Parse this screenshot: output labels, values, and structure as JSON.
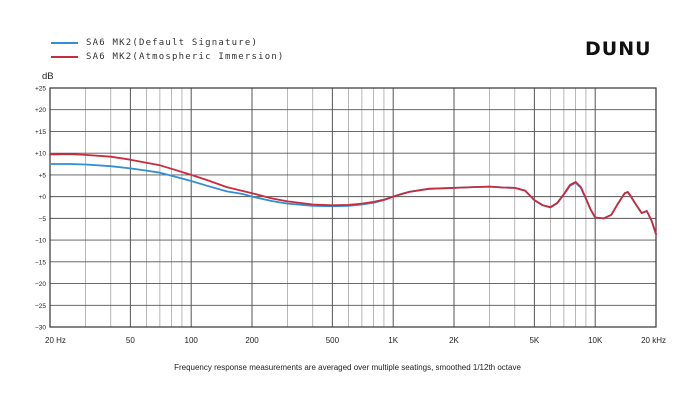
{
  "brand": {
    "logo_text": "DUNU"
  },
  "caption": "Frequency response measurements are averaged over multiple seatings, smoothed 1/12th octave",
  "chart_data": {
    "type": "line",
    "title": "",
    "xlabel": "",
    "ylabel": "dB",
    "x_scale": "log",
    "xlim": [
      20,
      20000
    ],
    "ylim": [
      -30,
      25
    ],
    "grid": true,
    "legend_position": "top-left",
    "x_ticks": [
      {
        "value": 20,
        "label": "20 Hz"
      },
      {
        "value": 50,
        "label": "50"
      },
      {
        "value": 100,
        "label": "100"
      },
      {
        "value": 200,
        "label": "200"
      },
      {
        "value": 500,
        "label": "500"
      },
      {
        "value": 1000,
        "label": "1K"
      },
      {
        "value": 2000,
        "label": "2K"
      },
      {
        "value": 5000,
        "label": "5K"
      },
      {
        "value": 10000,
        "label": "10K"
      },
      {
        "value": 20000,
        "label": "20 kHz"
      }
    ],
    "y_ticks": [
      {
        "value": 25,
        "label": "+25"
      },
      {
        "value": 20,
        "label": "+20"
      },
      {
        "value": 15,
        "label": "+15"
      },
      {
        "value": 10,
        "label": "+10"
      },
      {
        "value": 5,
        "label": "+5"
      },
      {
        "value": 0,
        "label": "+0"
      },
      {
        "value": -5,
        "label": "−5"
      },
      {
        "value": -10,
        "label": "−10"
      },
      {
        "value": -15,
        "label": "−15"
      },
      {
        "value": -20,
        "label": "−20"
      },
      {
        "value": -25,
        "label": "−25"
      },
      {
        "value": -30,
        "label": "−30"
      }
    ],
    "series": [
      {
        "name": "SA6 MK2(Default Signature)",
        "color": "#2f8fd6",
        "points": [
          [
            20,
            7.5
          ],
          [
            25,
            7.5
          ],
          [
            30,
            7.4
          ],
          [
            40,
            7.0
          ],
          [
            50,
            6.5
          ],
          [
            60,
            6.0
          ],
          [
            70,
            5.5
          ],
          [
            80,
            4.8
          ],
          [
            100,
            3.6
          ],
          [
            120,
            2.5
          ],
          [
            150,
            1.2
          ],
          [
            180,
            0.6
          ],
          [
            200,
            0.0
          ],
          [
            250,
            -1.0
          ],
          [
            300,
            -1.6
          ],
          [
            400,
            -2.1
          ],
          [
            500,
            -2.2
          ],
          [
            600,
            -2.1
          ],
          [
            700,
            -1.8
          ],
          [
            800,
            -1.4
          ],
          [
            900,
            -0.8
          ],
          [
            1000,
            0.0
          ],
          [
            1100,
            0.6
          ],
          [
            1200,
            1.1
          ],
          [
            1500,
            1.8
          ],
          [
            2000,
            2.0
          ],
          [
            2500,
            2.2
          ],
          [
            3000,
            2.3
          ],
          [
            3500,
            2.1
          ],
          [
            4000,
            2.0
          ],
          [
            4500,
            1.4
          ],
          [
            5000,
            -0.8
          ],
          [
            5500,
            -2.0
          ],
          [
            6000,
            -2.5
          ],
          [
            6500,
            -1.5
          ],
          [
            7000,
            0.5
          ],
          [
            7500,
            2.5
          ],
          [
            8000,
            3.2
          ],
          [
            8500,
            2.0
          ],
          [
            9000,
            -0.5
          ],
          [
            9500,
            -3.0
          ],
          [
            10000,
            -4.8
          ],
          [
            11000,
            -5.0
          ],
          [
            12000,
            -4.2
          ],
          [
            13000,
            -1.5
          ],
          [
            14000,
            0.8
          ],
          [
            14500,
            1.0
          ],
          [
            15000,
            0.0
          ],
          [
            16000,
            -2.0
          ],
          [
            17000,
            -3.8
          ],
          [
            18000,
            -3.3
          ],
          [
            19000,
            -5.5
          ],
          [
            20000,
            -8.5
          ]
        ]
      },
      {
        "name": "SA6 MK2(Atmospheric Immersion)",
        "color": "#c72c3c",
        "points": [
          [
            20,
            9.7
          ],
          [
            25,
            9.8
          ],
          [
            30,
            9.6
          ],
          [
            40,
            9.2
          ],
          [
            50,
            8.5
          ],
          [
            60,
            7.8
          ],
          [
            70,
            7.2
          ],
          [
            80,
            6.4
          ],
          [
            100,
            5.0
          ],
          [
            120,
            3.8
          ],
          [
            150,
            2.2
          ],
          [
            180,
            1.3
          ],
          [
            200,
            0.8
          ],
          [
            250,
            -0.4
          ],
          [
            300,
            -1.1
          ],
          [
            400,
            -1.8
          ],
          [
            500,
            -2.0
          ],
          [
            600,
            -1.9
          ],
          [
            700,
            -1.6
          ],
          [
            800,
            -1.2
          ],
          [
            900,
            -0.7
          ],
          [
            1000,
            0.0
          ],
          [
            1100,
            0.6
          ],
          [
            1200,
            1.1
          ],
          [
            1500,
            1.8
          ],
          [
            2000,
            2.0
          ],
          [
            2500,
            2.2
          ],
          [
            3000,
            2.3
          ],
          [
            3500,
            2.1
          ],
          [
            4000,
            2.0
          ],
          [
            4500,
            1.4
          ],
          [
            5000,
            -0.8
          ],
          [
            5500,
            -2.0
          ],
          [
            6000,
            -2.4
          ],
          [
            6500,
            -1.4
          ],
          [
            7000,
            0.6
          ],
          [
            7500,
            2.7
          ],
          [
            8000,
            3.4
          ],
          [
            8500,
            2.2
          ],
          [
            9000,
            -0.4
          ],
          [
            9500,
            -3.0
          ],
          [
            10000,
            -4.8
          ],
          [
            11000,
            -5.0
          ],
          [
            12000,
            -4.2
          ],
          [
            13000,
            -1.5
          ],
          [
            14000,
            0.8
          ],
          [
            14500,
            1.1
          ],
          [
            15000,
            0.1
          ],
          [
            16000,
            -2.0
          ],
          [
            17000,
            -3.8
          ],
          [
            18000,
            -3.3
          ],
          [
            19000,
            -5.5
          ],
          [
            20000,
            -8.7
          ]
        ]
      }
    ]
  }
}
